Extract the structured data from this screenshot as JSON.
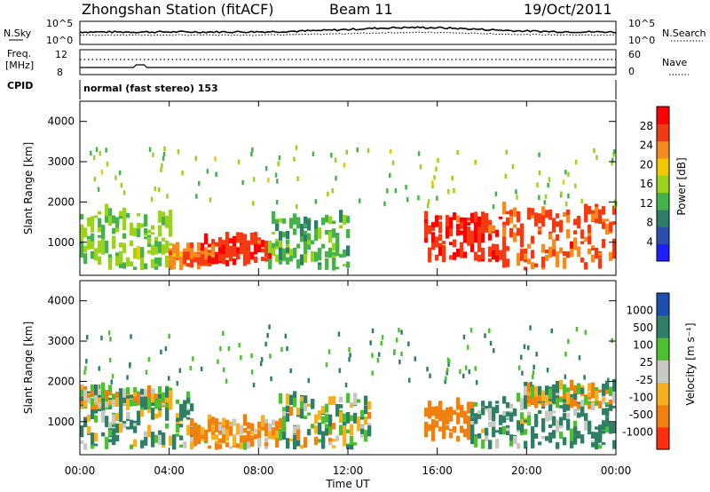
{
  "header": {
    "station": "Zhongshan Station (fitACF)",
    "beam": "Beam 11",
    "date": "19/Oct/2011"
  },
  "top_panels": {
    "nsky_label": "N.Sky",
    "nsearch_label": "N.Search",
    "nsky_ticks": [
      "10^5",
      "10^0"
    ],
    "freq_label_1": "Freq.",
    "freq_label_2": "[MHz]",
    "freq_ticks": [
      "12",
      "8"
    ],
    "nave_label": "Nave",
    "nave_ticks": [
      "60",
      "0"
    ],
    "cpid_label": "CPID",
    "cpid_text": "normal (fast stereo) 153"
  },
  "axes": {
    "ylabel": "Slant Range [km]",
    "xlabel": "Time UT",
    "yticks": [
      "4000",
      "3000",
      "2000",
      "1000"
    ],
    "xticks": [
      "00:00",
      "04:00",
      "08:00",
      "12:00",
      "16:00",
      "20:00",
      "00:00"
    ]
  },
  "colorbars": {
    "power": {
      "label": "Power [dB]",
      "ticks": [
        "28",
        "24",
        "20",
        "16",
        "12",
        "8",
        "4"
      ],
      "colors": [
        "#1e1eff",
        "#2b4fb0",
        "#2f7d6a",
        "#46b24a",
        "#9ad21e",
        "#f0c800",
        "#f58a1e",
        "#f23b14",
        "#ff0000"
      ]
    },
    "velocity": {
      "label": "Velocity [m s⁻¹]",
      "ticks": [
        "1000",
        "500",
        "100",
        "25",
        "-25",
        "-100",
        "-500",
        "-1000"
      ],
      "colors": [
        "#1c4fb0",
        "#2f7f66",
        "#4cc030",
        "#c8c8c0",
        "#f5b020",
        "#f08010",
        "#ff3010"
      ]
    }
  },
  "chart_data": [
    {
      "type": "heatmap",
      "name": "power",
      "x_range": [
        "00:00",
        "00:00"
      ],
      "ylim": [
        180,
        4500
      ],
      "zlim": [
        0,
        30
      ],
      "range_bands": [
        {
          "t0": 0,
          "t1": 4,
          "r0": 300,
          "r1": 1700,
          "z": 14
        },
        {
          "t0": 4,
          "t1": 6,
          "r0": 300,
          "r1": 800,
          "z": 22
        },
        {
          "t0": 5.5,
          "t1": 8.5,
          "r0": 400,
          "r1": 1000,
          "z": 26
        },
        {
          "t0": 8.5,
          "t1": 12,
          "r0": 300,
          "r1": 1500,
          "z": 12
        },
        {
          "t0": 15.5,
          "t1": 19,
          "r0": 500,
          "r1": 1600,
          "z": 26
        },
        {
          "t0": 19,
          "t1": 24,
          "r0": 300,
          "r1": 1700,
          "z": 24
        }
      ]
    },
    {
      "type": "heatmap",
      "name": "velocity",
      "x_range": [
        "00:00",
        "00:00"
      ],
      "ylim": [
        180,
        4500
      ],
      "zlim": [
        -1000,
        1000
      ],
      "range_bands": [
        {
          "t0": 0,
          "t1": 5,
          "r0": 300,
          "r1": 1500,
          "z": 100
        },
        {
          "t0": 0,
          "t1": 4,
          "r0": 1300,
          "r1": 1700,
          "z": 0
        },
        {
          "t0": 5,
          "t1": 9,
          "r0": 300,
          "r1": 900,
          "z": -100
        },
        {
          "t0": 9,
          "t1": 13,
          "r0": 300,
          "r1": 1500,
          "z": 50
        },
        {
          "t0": 15.5,
          "t1": 17.5,
          "r0": 500,
          "r1": 1300,
          "z": -300
        },
        {
          "t0": 17.5,
          "t1": 24,
          "r0": 300,
          "r1": 1500,
          "z": 150
        },
        {
          "t0": 20,
          "t1": 24,
          "r0": 1300,
          "r1": 1800,
          "z": 0
        }
      ]
    }
  ]
}
